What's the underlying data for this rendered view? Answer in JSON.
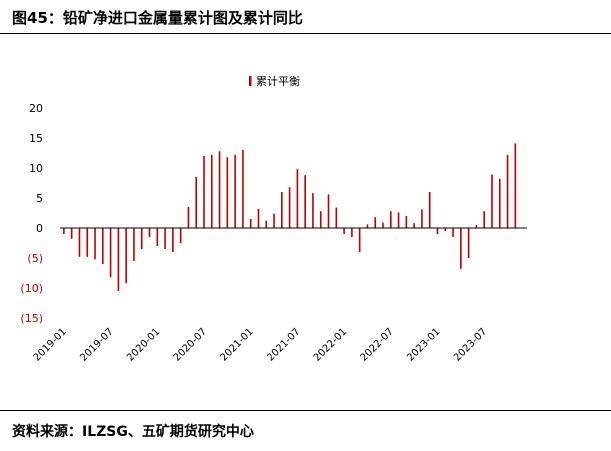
{
  "figure": {
    "title": "图45：铅矿净进口金属量累计图及累计同比",
    "source": "资料来源：ILZSG、五矿期货研究中心"
  },
  "colors": {
    "bar": "#C00000",
    "axis": "#000000",
    "text": "#000000"
  },
  "chart_data": {
    "type": "bar",
    "title": "",
    "xlabel": "",
    "ylabel": "",
    "ylim": [
      -15,
      20
    ],
    "yticks": [
      20,
      15,
      10,
      5,
      0,
      -5,
      -10,
      -15
    ],
    "ytick_labels": [
      "20",
      "15",
      "10",
      "5",
      "0",
      "(5)",
      "(10)",
      "(15)"
    ],
    "xtick_labels": [
      "2019-01",
      "2019-07",
      "2020-01",
      "2020-07",
      "2021-01",
      "2021-07",
      "2022-01",
      "2022-07",
      "2023-01",
      "2023-07"
    ],
    "xtick_every": 6,
    "legend": {
      "label": "累计平衡",
      "position": "top-center"
    },
    "grid": false,
    "categories": [
      "2019-01",
      "2019-02",
      "2019-03",
      "2019-04",
      "2019-05",
      "2019-06",
      "2019-07",
      "2019-08",
      "2019-09",
      "2019-10",
      "2019-11",
      "2019-12",
      "2020-01",
      "2020-02",
      "2020-03",
      "2020-04",
      "2020-05",
      "2020-06",
      "2020-07",
      "2020-08",
      "2020-09",
      "2020-10",
      "2020-11",
      "2020-12",
      "2021-01",
      "2021-02",
      "2021-03",
      "2021-04",
      "2021-05",
      "2021-06",
      "2021-07",
      "2021-08",
      "2021-09",
      "2021-10",
      "2021-11",
      "2021-12",
      "2022-01",
      "2022-02",
      "2022-03",
      "2022-04",
      "2022-05",
      "2022-06",
      "2022-07",
      "2022-08",
      "2022-09",
      "2022-10",
      "2022-11",
      "2022-12",
      "2023-01",
      "2023-02",
      "2023-03",
      "2023-04",
      "2023-05",
      "2023-06",
      "2023-07",
      "2023-08",
      "2023-09",
      "2023-10",
      "2023-11",
      "2023-12"
    ],
    "series": [
      {
        "name": "累计平衡",
        "values": [
          -1.0,
          -1.8,
          -4.8,
          -4.8,
          -5.2,
          -6.0,
          -8.2,
          -10.5,
          -9.2,
          -5.5,
          -3.5,
          -1.5,
          -3.0,
          -3.5,
          -4.0,
          -2.5,
          3.5,
          8.5,
          12.0,
          12.2,
          12.8,
          11.8,
          12.2,
          13.0,
          1.5,
          3.2,
          1.2,
          2.4,
          6.0,
          6.8,
          9.8,
          8.8,
          5.8,
          2.8,
          5.6,
          3.4,
          -1.0,
          -1.5,
          -4.0,
          0.6,
          1.8,
          0.9,
          2.8,
          2.6,
          2.0,
          0.8,
          3.1,
          6.0,
          -1.0,
          -0.5,
          -1.5,
          -6.8,
          -5.0,
          0.5,
          2.8,
          8.9,
          8.2,
          12.2,
          14.1,
          0.0
        ]
      }
    ]
  }
}
